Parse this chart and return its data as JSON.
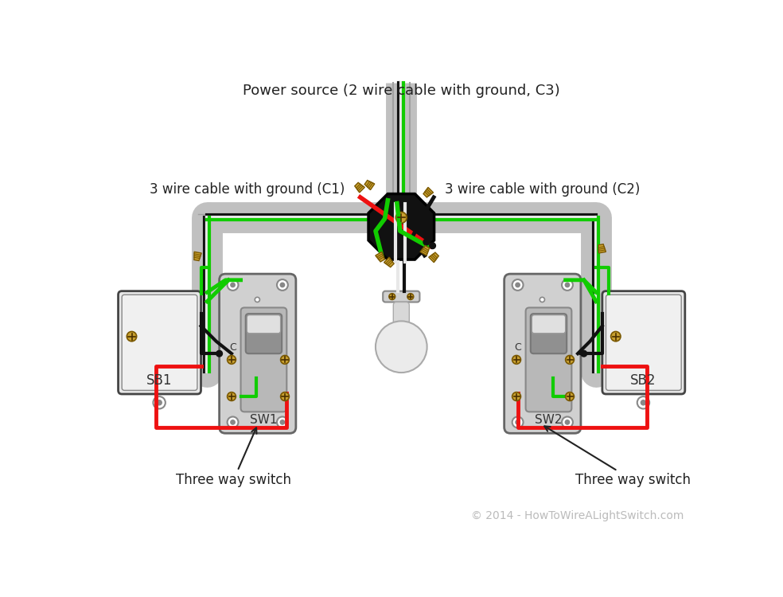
{
  "title": "Power source (2 wire cable with ground, C3)",
  "label_c1": "3 wire cable with ground (C1)",
  "label_c2": "3 wire cable with ground (C2)",
  "label_sw1": "Three way switch",
  "label_sw2": "Three way switch",
  "label_sb1": "SB1",
  "label_sb2": "SB2",
  "label_sw1_tag": "SW1",
  "label_sw2_tag": "SW2",
  "label_c_tag": "C",
  "copyright": "© 2014 - HowToWireALightSwitch.com",
  "bg_color": "#ffffff",
  "wire_red": "#ee1111",
  "wire_green": "#11cc00",
  "wire_black": "#111111",
  "wire_white": "#e8e8e8",
  "conduit_color": "#c0c0c0",
  "conduit_edge": "#a0a0a0",
  "box_fill": "#e8e8e8",
  "box_stroke": "#444444",
  "gold_color": "#c8a030",
  "junction_box_fill": "#111111",
  "junction_box_edge": "#000000",
  "switch_plate_fill": "#d0d0d0",
  "switch_plate_edge": "#666666",
  "switch_body_fill": "#b8b8b8",
  "switch_toggle_fill": "#909090",
  "light_socket_fill": "#d8d8d8",
  "bulb_fill": "#e8e8e8",
  "title_fontsize": 13,
  "label_fontsize": 12,
  "annot_fontsize": 12,
  "copyright_fontsize": 10
}
